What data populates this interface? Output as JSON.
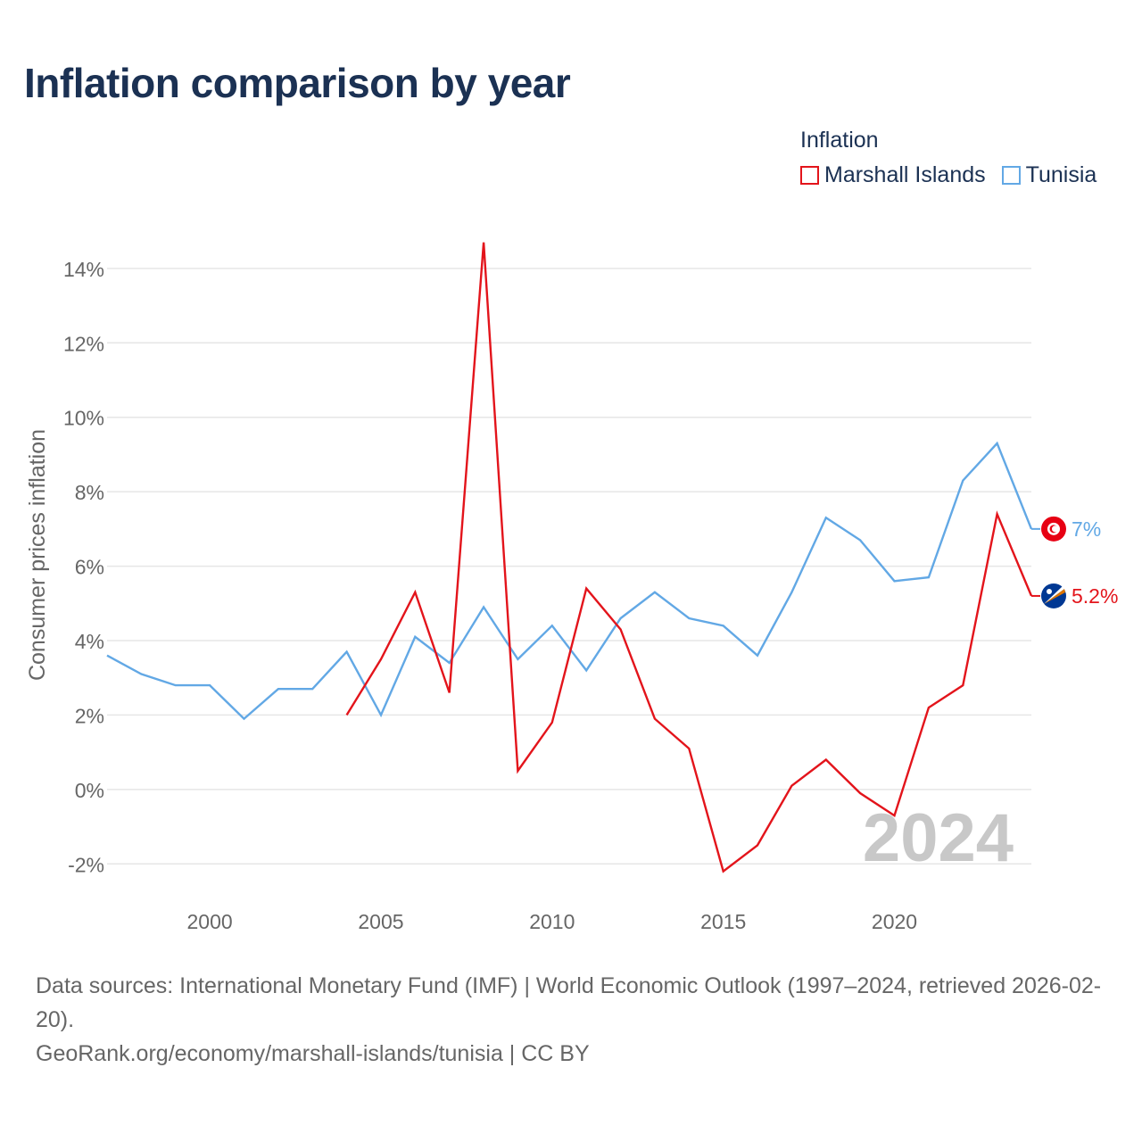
{
  "title": "Inflation comparison by year",
  "legend": {
    "title": "Inflation",
    "items": [
      {
        "label": "Marshall Islands",
        "color": "#e3141b"
      },
      {
        "label": "Tunisia",
        "color": "#62a8e5"
      }
    ]
  },
  "footer": {
    "sources": "Data sources: International Monetary Fund (IMF) | World Economic Outlook (1997–2024, retrieved 2026-02-20).",
    "credit": "GeoRank.org/economy/marshall-islands/tunisia | CC BY"
  },
  "chart_data": {
    "type": "line",
    "title": "Inflation comparison by year",
    "xlabel": "",
    "ylabel": "Consumer prices inflation",
    "xlim": [
      1997,
      2024
    ],
    "ylim": [
      -3,
      14.5
    ],
    "yticks": [
      -2,
      0,
      2,
      4,
      6,
      8,
      10,
      12,
      14
    ],
    "ytick_labels": [
      "-2%",
      "0%",
      "2%",
      "4%",
      "6%",
      "8%",
      "10%",
      "12%",
      "14%"
    ],
    "xticks": [
      2000,
      2005,
      2010,
      2015,
      2020
    ],
    "xtick_labels": [
      "2000",
      "2005",
      "2010",
      "2015",
      "2020"
    ],
    "watermark_year": "2024",
    "grid": true,
    "legend_position": "top-right",
    "series": [
      {
        "name": "Marshall Islands",
        "color": "#e3141b",
        "end_label": "5.2%",
        "flag_icon": "marshall-islands-flag-icon",
        "x": [
          2004,
          2005,
          2006,
          2007,
          2008,
          2009,
          2010,
          2011,
          2012,
          2013,
          2014,
          2015,
          2016,
          2017,
          2018,
          2019,
          2020,
          2021,
          2022,
          2023,
          2024
        ],
        "values": [
          2.0,
          3.5,
          5.3,
          2.6,
          14.7,
          0.5,
          1.8,
          5.4,
          4.3,
          1.9,
          1.1,
          -2.2,
          -1.5,
          0.1,
          0.8,
          -0.1,
          -0.7,
          2.2,
          2.8,
          7.4,
          5.2
        ]
      },
      {
        "name": "Tunisia",
        "color": "#62a8e5",
        "end_label": "7%",
        "flag_icon": "tunisia-flag-icon",
        "x": [
          1997,
          1998,
          1999,
          2000,
          2001,
          2002,
          2003,
          2004,
          2005,
          2006,
          2007,
          2008,
          2009,
          2010,
          2011,
          2012,
          2013,
          2014,
          2015,
          2016,
          2017,
          2018,
          2019,
          2020,
          2021,
          2022,
          2023,
          2024
        ],
        "values": [
          3.6,
          3.1,
          2.8,
          2.8,
          1.9,
          2.7,
          2.7,
          3.7,
          2.0,
          4.1,
          3.4,
          4.9,
          3.5,
          4.4,
          3.2,
          4.6,
          5.3,
          4.6,
          4.4,
          3.6,
          5.3,
          7.3,
          6.7,
          5.6,
          5.7,
          8.3,
          9.3,
          7.0
        ]
      }
    ]
  }
}
